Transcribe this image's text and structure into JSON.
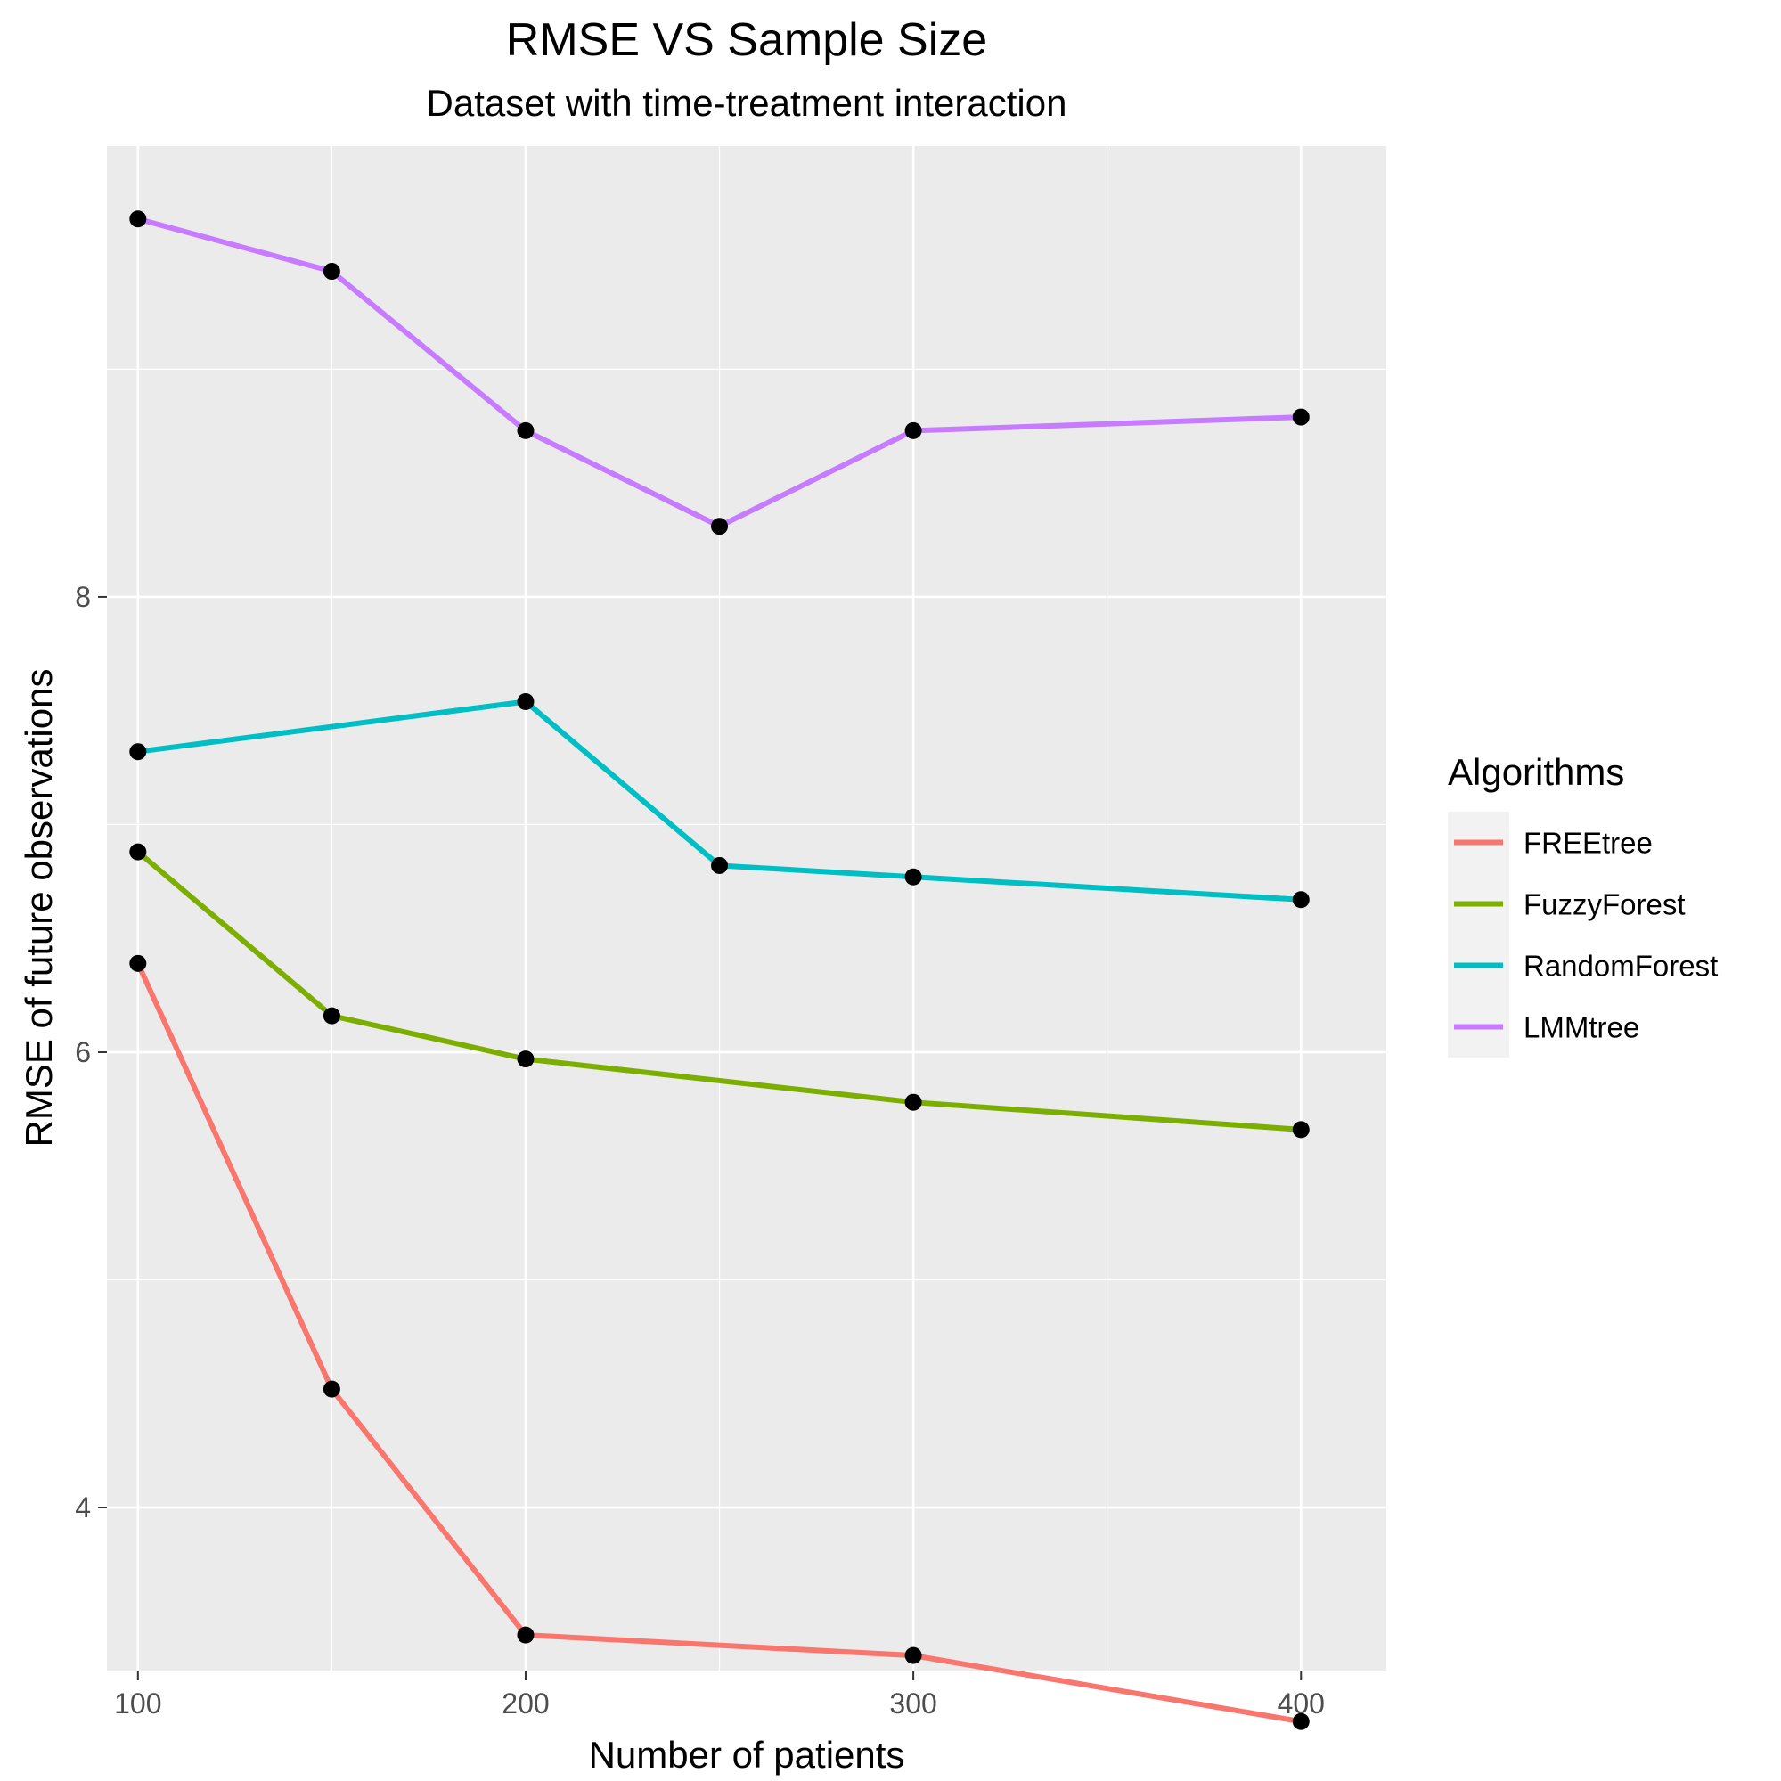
{
  "chart_data": {
    "type": "line",
    "title": "RMSE VS Sample Size",
    "subtitle": "Dataset with time-treatment interaction",
    "xlabel": "Number of patients",
    "ylabel": "RMSE of future observations",
    "xlim": [
      92,
      422
    ],
    "ylim": [
      3.28,
      9.98
    ],
    "x_ticks": [
      100,
      200,
      300,
      400
    ],
    "y_ticks": [
      4,
      6,
      8
    ],
    "x_tick_labels": [
      "100",
      "200",
      "300",
      "400"
    ],
    "y_tick_labels": [
      "4",
      "6",
      "8"
    ],
    "grid": true,
    "legend": {
      "title": "Algorithms",
      "position": "right"
    },
    "series": [
      {
        "name": "FREEtree",
        "color": "#F8766D",
        "x": [
          100,
          150,
          200,
          300,
          400
        ],
        "y": [
          6.39,
          4.52,
          3.44,
          3.35,
          3.06
        ]
      },
      {
        "name": "FuzzyForest",
        "color": "#7CAE00",
        "x": [
          100,
          150,
          200,
          300,
          400
        ],
        "y": [
          6.88,
          6.16,
          5.97,
          5.78,
          5.66
        ]
      },
      {
        "name": "RandomForest",
        "color": "#00BFC4",
        "x": [
          100,
          200,
          250,
          300,
          400
        ],
        "y": [
          7.32,
          7.54,
          6.82,
          6.77,
          6.67
        ]
      },
      {
        "name": "LMMtree",
        "color": "#C77CFF",
        "x": [
          100,
          150,
          200,
          250,
          300,
          400
        ],
        "y": [
          9.66,
          9.43,
          8.73,
          8.31,
          8.73,
          8.79
        ]
      }
    ]
  }
}
